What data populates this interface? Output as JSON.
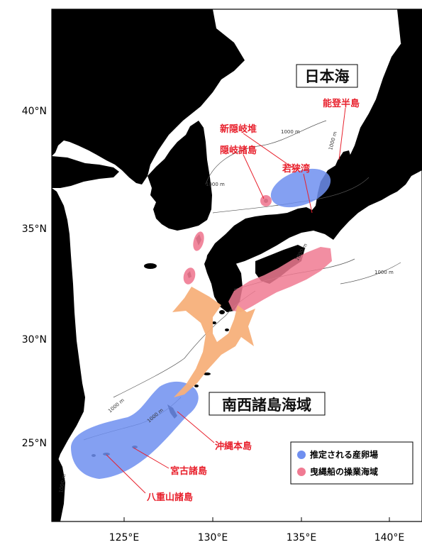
{
  "map": {
    "axis": {
      "lat_ticks": [
        "40°N",
        "35°N",
        "30°N",
        "25°N"
      ],
      "lon_ticks": [
        "125°E",
        "130°E",
        "135°E",
        "140°E"
      ]
    },
    "sea_of_japan_label": "日本海",
    "nansei_label": "南西諸島海域",
    "places": {
      "noto": "能登半島",
      "shin_oki": "新隠岐堆",
      "oki": "隠岐諸島",
      "wakasa": "若狭湾",
      "okinawa": "沖縄本島",
      "miyako": "宮古諸島",
      "yaeyama": "八重山諸島"
    },
    "depth_labels": [
      "1000 m",
      "1000 m",
      "1000 m",
      "1000 m",
      "1000 m",
      "1000 m",
      "1000 m",
      "1000 m"
    ],
    "legend": {
      "items": [
        {
          "label": "推定される産卵場",
          "color": "#6f8ff0"
        },
        {
          "label": "曳縄船の操業海域",
          "color": "#f07a92"
        }
      ]
    },
    "colors": {
      "land": "#000000",
      "spawning": "#6f8ff0",
      "fishing": "#f07a92",
      "migration": "#f7b07a",
      "label_red": "#e8202c"
    }
  }
}
